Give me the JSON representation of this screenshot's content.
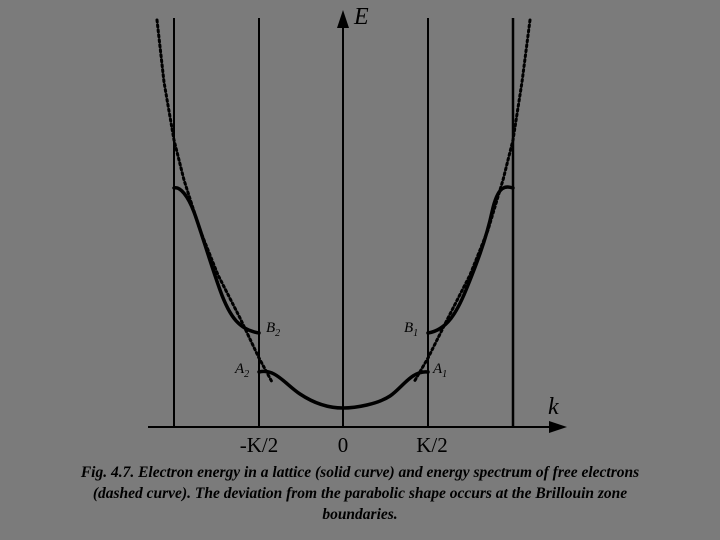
{
  "figure": {
    "axis_labels": {
      "energy": "E",
      "wavevector": "k"
    },
    "tick_labels": {
      "neg_half_K": "-K/2",
      "zero": "0",
      "pos_half_K": "K/2"
    },
    "point_labels": {
      "B2": "B",
      "B2_sub": "2",
      "A2": "A",
      "A2_sub": "2",
      "B1": "B",
      "B1_sub": "1",
      "A1": "A",
      "A1_sub": "1"
    },
    "legend": {
      "solid": "electron energy in a lattice",
      "dashed": "energy spectrum of free electrons"
    }
  },
  "caption": {
    "line1": "Fig. 4.7. Electron energy in a lattice (solid curve) and energy spectrum of free electrons",
    "line2": "(dashed curve). The deviation from the parabolic shape occurs at the Brillouin zone",
    "line3": "boundaries."
  }
}
